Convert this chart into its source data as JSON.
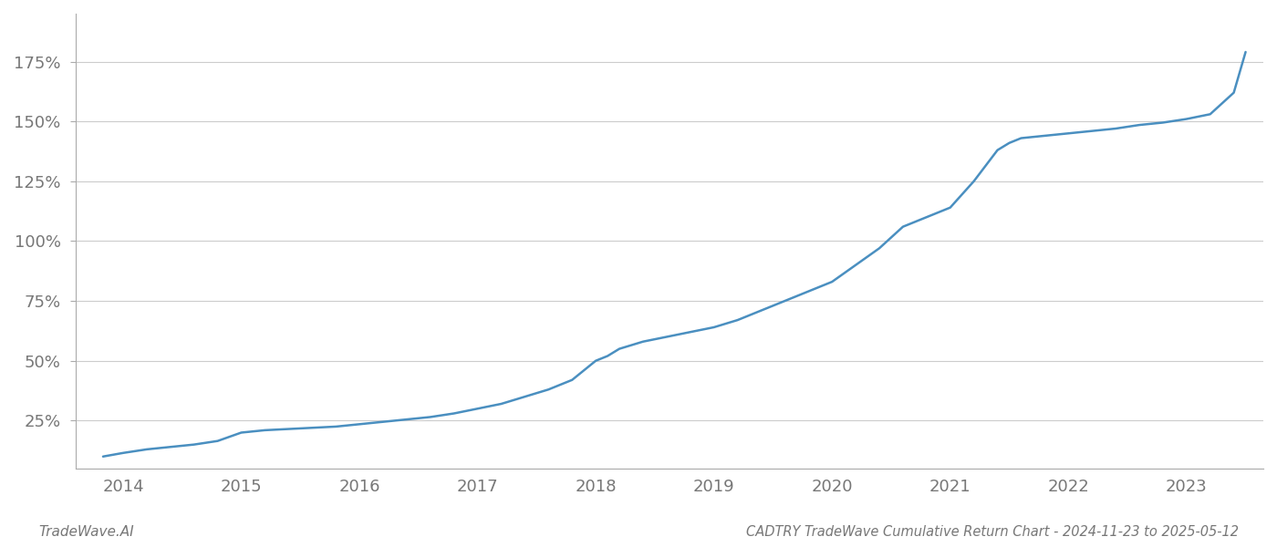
{
  "title": "CADTRY TradeWave Cumulative Return Chart - 2024-11-23 to 2025-05-12",
  "watermark": "TradeWave.AI",
  "line_color": "#4a8fc0",
  "line_width": 1.8,
  "background_color": "#ffffff",
  "plot_background_color": "#ffffff",
  "grid_color": "#cccccc",
  "x_values": [
    2013.83,
    2014.0,
    2014.2,
    2014.4,
    2014.6,
    2014.8,
    2015.0,
    2015.2,
    2015.4,
    2015.6,
    2015.8,
    2016.0,
    2016.2,
    2016.4,
    2016.6,
    2016.8,
    2017.0,
    2017.2,
    2017.4,
    2017.6,
    2017.8,
    2018.0,
    2018.1,
    2018.2,
    2018.4,
    2018.6,
    2018.8,
    2019.0,
    2019.2,
    2019.4,
    2019.6,
    2019.8,
    2020.0,
    2020.2,
    2020.4,
    2020.6,
    2020.8,
    2021.0,
    2021.2,
    2021.4,
    2021.5,
    2021.6,
    2021.8,
    2022.0,
    2022.2,
    2022.4,
    2022.6,
    2022.8,
    2023.0,
    2023.2,
    2023.4,
    2023.5
  ],
  "y_values": [
    10,
    11.5,
    13,
    14,
    15,
    16.5,
    20,
    21,
    21.5,
    22,
    22.5,
    23.5,
    24.5,
    25.5,
    26.5,
    28,
    30,
    32,
    35,
    38,
    42,
    50,
    52,
    55,
    58,
    60,
    62,
    64,
    67,
    71,
    75,
    79,
    83,
    90,
    97,
    106,
    110,
    114,
    125,
    138,
    141,
    143,
    144,
    145,
    146,
    147,
    148.5,
    149.5,
    151,
    153,
    162,
    179
  ],
  "yticks": [
    25,
    50,
    75,
    100,
    125,
    150,
    175
  ],
  "ytick_labels": [
    "25%",
    "50%",
    "75%",
    "100%",
    "125%",
    "150%",
    "175%"
  ],
  "xlim": [
    2013.6,
    2023.65
  ],
  "ylim": [
    5,
    195
  ],
  "xticks": [
    2014,
    2015,
    2016,
    2017,
    2018,
    2019,
    2020,
    2021,
    2022,
    2023
  ],
  "xtick_labels": [
    "2014",
    "2015",
    "2016",
    "2017",
    "2018",
    "2019",
    "2020",
    "2021",
    "2022",
    "2023"
  ],
  "title_fontsize": 10.5,
  "tick_fontsize": 13,
  "watermark_fontsize": 11
}
